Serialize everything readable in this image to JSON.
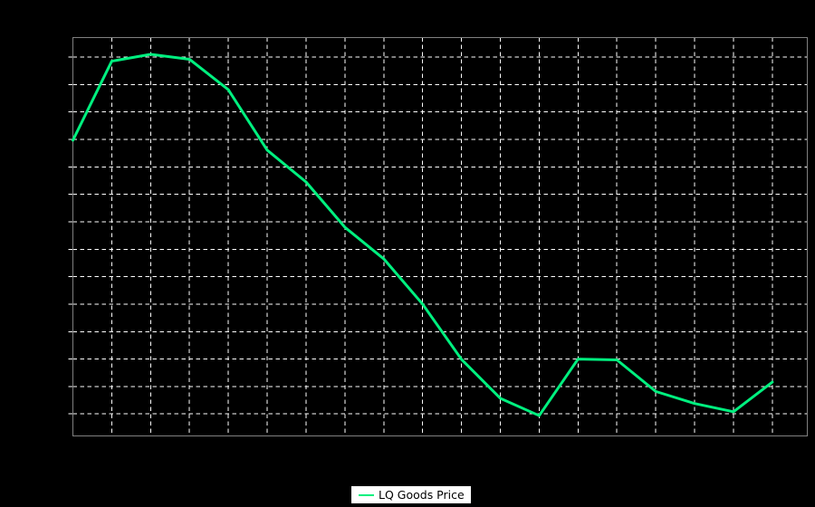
{
  "window": {
    "background_color": "#000000",
    "plot_frame_color": "#808080",
    "gridline_color": "#ffffff",
    "gridline_style": "dashed"
  },
  "legend": {
    "position": "bottom-center",
    "background_color": "#ffffff",
    "text_color": "#000000",
    "items": [
      {
        "label": "LQ Goods Price",
        "color": "#00F07F"
      }
    ]
  },
  "chart_data": {
    "type": "line",
    "title": "",
    "xlabel": "",
    "ylabel": "",
    "tick_labels": "none visible on either axis",
    "grid": "on (white dashed, both axes), black background",
    "legend_position": "bottom center, outside plot area",
    "x": [
      0,
      1,
      2,
      3,
      4,
      5,
      6,
      7,
      8,
      9,
      10,
      11,
      12,
      13,
      14,
      15,
      16,
      17,
      18
    ],
    "series": [
      {
        "name": "LQ Goods Price",
        "color": "#00F07F",
        "values": [
          9.97,
          12.85,
          13.1,
          12.92,
          11.81,
          9.61,
          8.45,
          6.8,
          5.65,
          4.0,
          1.99,
          0.57,
          -0.06,
          2.0,
          1.97,
          0.82,
          0.38,
          0.08,
          1.16
        ]
      }
    ],
    "xlim": [
      0,
      18.9
    ],
    "ylim": [
      -0.8,
      13.71
    ],
    "x_gridlines": [
      1,
      2,
      3,
      4,
      5,
      6,
      7,
      8,
      9,
      10,
      11,
      12,
      13,
      14,
      15,
      16,
      17,
      18
    ],
    "y_gridlines": [
      0,
      1,
      2,
      3,
      4,
      5,
      6,
      7,
      8,
      9,
      10,
      11,
      12,
      13
    ]
  }
}
